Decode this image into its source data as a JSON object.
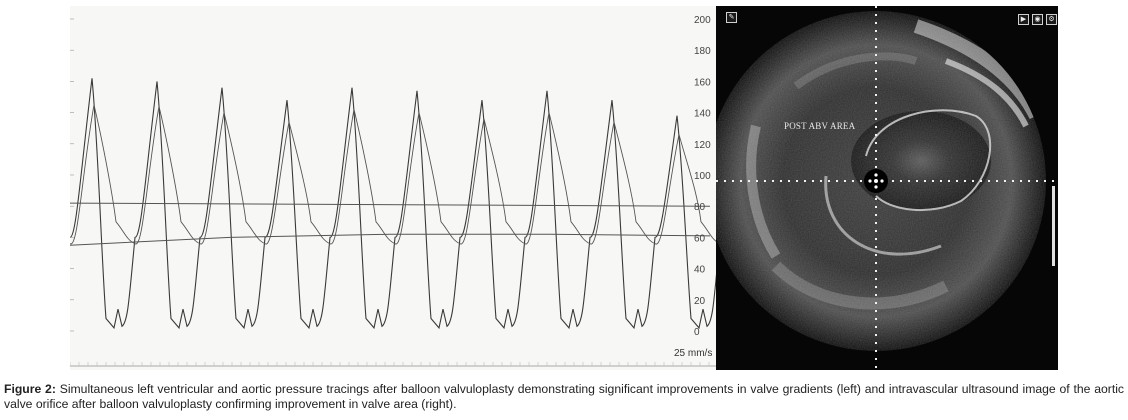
{
  "tracing": {
    "y_axis_ticks": [
      "200",
      "180",
      "160",
      "140",
      "120",
      "100",
      "80",
      "60",
      "40",
      "20",
      "0"
    ],
    "speed_label": "25 mm/s",
    "beat_peaks_mmHg": [
      162,
      160,
      156,
      148,
      156,
      154,
      148,
      154,
      148,
      138
    ],
    "aortic_systolic_mmHg": [
      145,
      144,
      140,
      134,
      142,
      140,
      136,
      140,
      134,
      126
    ],
    "horizontal_line_a_mmHg": 82,
    "horizontal_line_b_mmHg": [
      55,
      60,
      62,
      62,
      61
    ]
  },
  "ivus": {
    "label": "POST ABV AREA"
  },
  "caption": {
    "prefix": "Figure 2:",
    "text": " Simultaneous left ventricular and aortic pressure tracings after balloon valvuloplasty demonstrating significant improvements in valve gradients (left) and intravascular ultrasound image of the aortic valve orifice after balloon valvuloplasty confirming improvement in valve area (right)."
  }
}
